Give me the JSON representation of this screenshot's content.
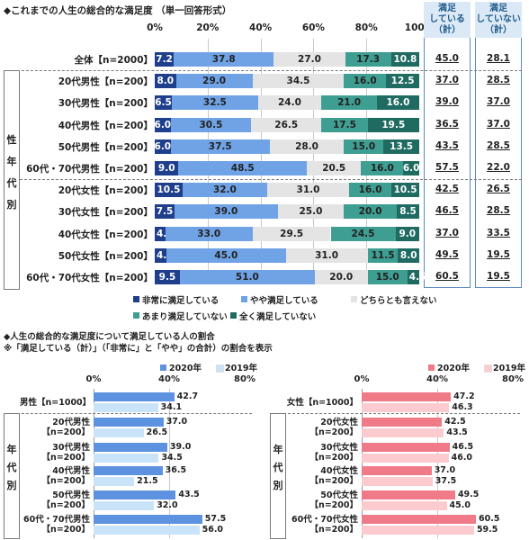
{
  "top_title": "◆これまでの人生の総合的な満足度 （単一回答形式）",
  "summary_headers": [
    "満足\nしている\n（計）",
    "満足\nしていない\n（計）"
  ],
  "group_labels": {
    "top": "性\n年\n代\n別",
    "bottom": "年\n代\n別"
  },
  "colors": {
    "very": "#1f3f8c",
    "somewhat": "#6fa3e6",
    "neither": "#e4e4e4",
    "not_much": "#3f9e92",
    "not_at_all": "#1f6b61",
    "male_2020": "#5d92e0",
    "male_2019": "#c9e3f8",
    "female_2020": "#f07a88",
    "female_2019": "#fbcbd0",
    "header_bg": "#dbe9f6",
    "header_border": "#5a8ac0"
  },
  "chart_data": [
    {
      "type": "bar",
      "stacked": true,
      "orientation": "horizontal",
      "title": "◆これまでの人生の総合的な満足度 （単一回答形式）",
      "xlim": [
        0,
        100
      ],
      "x_ticks": [
        "0%",
        "20%",
        "40%",
        "60%",
        "80%",
        "100%"
      ],
      "categories": [
        "全体【n=2000】",
        "20代男性【n=200】",
        "30代男性【n=200】",
        "40代男性【n=200】",
        "50代男性【n=200】",
        "60代・70代男性【n=200】",
        "20代女性【n=200】",
        "30代女性【n=200】",
        "40代女性【n=200】",
        "50代女性【n=200】",
        "60代・70代女性【n=200】"
      ],
      "series": [
        {
          "name": "非常に満足している",
          "values": [
            7.2,
            8.0,
            6.5,
            6.0,
            6.0,
            9.0,
            10.5,
            7.5,
            4.0,
            4.5,
            9.5
          ]
        },
        {
          "name": "やや満足している",
          "values": [
            37.8,
            29.0,
            32.5,
            30.5,
            37.5,
            48.5,
            32.0,
            39.0,
            33.0,
            45.0,
            51.0
          ]
        },
        {
          "name": "どちらとも言えない",
          "values": [
            27.0,
            34.5,
            24.0,
            26.5,
            28.0,
            20.5,
            31.0,
            25.0,
            29.5,
            31.0,
            20.0
          ]
        },
        {
          "name": "あまり満足していない",
          "values": [
            17.3,
            16.0,
            21.0,
            17.5,
            15.0,
            16.0,
            16.0,
            20.0,
            24.5,
            11.5,
            15.0
          ]
        },
        {
          "name": "全く満足していない",
          "values": [
            10.8,
            12.5,
            16.0,
            19.5,
            13.5,
            6.0,
            10.5,
            8.5,
            9.0,
            8.0,
            4.5
          ]
        }
      ],
      "summary": [
        {
          "name": "満足している（計）",
          "values": [
            "45.0",
            "37.0",
            "39.0",
            "36.5",
            "43.5",
            "57.5",
            "42.5",
            "46.5",
            "37.0",
            "49.5",
            "60.5"
          ]
        },
        {
          "name": "満足していない（計）",
          "values": [
            "28.1",
            "28.5",
            "37.0",
            "37.0",
            "28.5",
            "22.0",
            "26.5",
            "28.5",
            "33.5",
            "19.5",
            "19.5"
          ]
        }
      ],
      "legend_position": "bottom"
    },
    {
      "type": "bar",
      "orientation": "horizontal",
      "title": "◆人生の総合的な満足度について満足している人の割合",
      "subtitle": "※「満足している（計）」（「非常に」と「やや」の合計）の割合を表示",
      "xlim": [
        0,
        80
      ],
      "x_ticks": [
        "0%",
        "40%",
        "80%"
      ],
      "categories": [
        "男性【n=1000】",
        "20代男性\n【n=200】",
        "30代男性\n【n=200】",
        "40代男性\n【n=200】",
        "50代男性\n【n=200】",
        "60代・70代男性\n【n=200】"
      ],
      "series": [
        {
          "name": "2020年",
          "values": [
            42.7,
            37.0,
            39.0,
            36.5,
            43.5,
            57.5
          ]
        },
        {
          "name": "2019年",
          "values": [
            34.1,
            26.5,
            34.5,
            21.5,
            32.0,
            56.0
          ]
        }
      ],
      "legend_position": "top"
    },
    {
      "type": "bar",
      "orientation": "horizontal",
      "xlim": [
        0,
        80
      ],
      "x_ticks": [
        "0%",
        "40%",
        "80%"
      ],
      "categories": [
        "女性【n=1000】",
        "20代女性\n【n=200】",
        "30代女性\n【n=200】",
        "40代女性\n【n=200】",
        "50代女性\n【n=200】",
        "60代・70代女性\n【n=200】"
      ],
      "series": [
        {
          "name": "2020年",
          "values": [
            47.2,
            42.5,
            46.5,
            37.0,
            49.5,
            60.5
          ]
        },
        {
          "name": "2019年",
          "values": [
            46.3,
            43.5,
            46.0,
            37.5,
            45.0,
            59.5
          ]
        }
      ],
      "legend_position": "top"
    }
  ]
}
